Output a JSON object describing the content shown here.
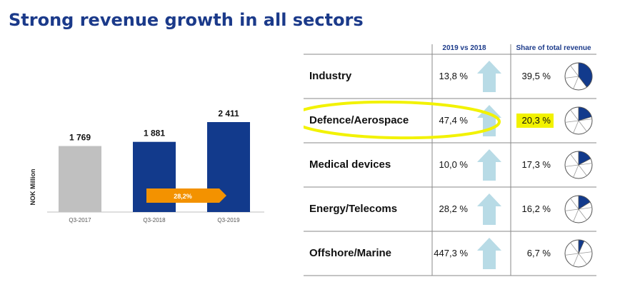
{
  "title": "Strong revenue growth in all sectors",
  "colors": {
    "title": "#1b3a8a",
    "bar_prior": "#c0c0c0",
    "bar_current": "#123a8c",
    "growth_arrow": "#f39200",
    "up_arrow": "#b8dbe6",
    "pie_fill": "#123a8c",
    "highlight": "#f2f200"
  },
  "chart_data": [
    {
      "type": "bar",
      "categories": [
        "Q3-2017",
        "Q3-2018",
        "Q3-2019"
      ],
      "values": [
        1769,
        1881,
        2411
      ],
      "value_labels": [
        "1 769",
        "1 881",
        "2 411"
      ],
      "ylabel": "NOK Million",
      "ylim": [
        0,
        2600
      ],
      "annotation": "28,2%"
    },
    {
      "type": "table",
      "columns": [
        "",
        "2019 vs 2018",
        "Share of total revenue"
      ],
      "rows": [
        {
          "sector": "Industry",
          "growth": "13,8 %",
          "share": "39,5 %",
          "share_value": 39.5,
          "highlight": false
        },
        {
          "sector": "Defence/Aerospace",
          "growth": "47,4 %",
          "share": "20,3 %",
          "share_value": 20.3,
          "highlight": true
        },
        {
          "sector": "Medical devices",
          "growth": "10,0 %",
          "share": "17,3 %",
          "share_value": 17.3,
          "highlight": false
        },
        {
          "sector": "Energy/Telecoms",
          "growth": "28,2 %",
          "share": "16,2 %",
          "share_value": 16.2,
          "highlight": false
        },
        {
          "sector": "Offshore/Marine",
          "growth": "447,3 %",
          "share": "6,7 %",
          "share_value": 6.7,
          "highlight": false
        }
      ]
    }
  ]
}
